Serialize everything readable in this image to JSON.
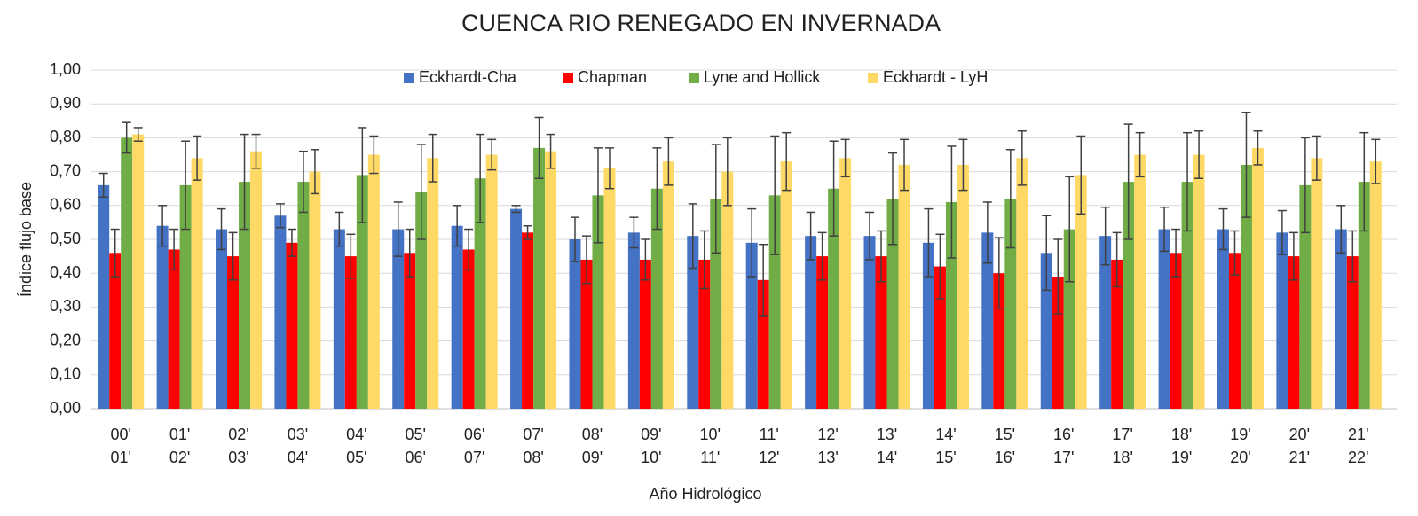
{
  "chart_data": {
    "type": "bar",
    "title": "CUENCA RIO RENEGADO EN INVERNADA",
    "x_label": "Año Hidrológico",
    "y_label": "Índice flujo base",
    "categories": [
      [
        "00'",
        "01'"
      ],
      [
        "01'",
        "02'"
      ],
      [
        "02'",
        "03'"
      ],
      [
        "03'",
        "04'"
      ],
      [
        "04'",
        "05'"
      ],
      [
        "05'",
        "06'"
      ],
      [
        "06'",
        "07'"
      ],
      [
        "07'",
        "08'"
      ],
      [
        "08'",
        "09'"
      ],
      [
        "09'",
        "10'"
      ],
      [
        "10'",
        "11'"
      ],
      [
        "11'",
        "12'"
      ],
      [
        "12'",
        "13'"
      ],
      [
        "13'",
        "14'"
      ],
      [
        "14'",
        "15'"
      ],
      [
        "15'",
        "16'"
      ],
      [
        "16'",
        "17'"
      ],
      [
        "17'",
        "18'"
      ],
      [
        "18'",
        "19'"
      ],
      [
        "19'",
        "20'"
      ],
      [
        "20'",
        "21'"
      ],
      [
        "21'",
        "22'"
      ]
    ],
    "series": [
      {
        "name": "Eckhardt-Cha",
        "color": "#4472c4",
        "values": [
          0.66,
          0.54,
          0.53,
          0.57,
          0.53,
          0.53,
          0.54,
          0.59,
          0.5,
          0.52,
          0.51,
          0.49,
          0.51,
          0.51,
          0.49,
          0.52,
          0.46,
          0.51,
          0.53,
          0.53,
          0.52,
          0.53
        ],
        "errors": [
          0.035,
          0.06,
          0.06,
          0.035,
          0.05,
          0.08,
          0.06,
          0.01,
          0.065,
          0.045,
          0.095,
          0.1,
          0.07,
          0.07,
          0.1,
          0.09,
          0.11,
          0.085,
          0.065,
          0.06,
          0.065,
          0.07
        ]
      },
      {
        "name": "Chapman",
        "color": "#ff0000",
        "values": [
          0.46,
          0.47,
          0.45,
          0.49,
          0.45,
          0.46,
          0.47,
          0.52,
          0.44,
          0.44,
          0.44,
          0.38,
          0.45,
          0.45,
          0.42,
          0.4,
          0.39,
          0.44,
          0.46,
          0.46,
          0.45,
          0.45
        ],
        "errors": [
          0.07,
          0.06,
          0.07,
          0.04,
          0.065,
          0.07,
          0.06,
          0.02,
          0.07,
          0.06,
          0.085,
          0.105,
          0.07,
          0.075,
          0.095,
          0.105,
          0.11,
          0.08,
          0.07,
          0.065,
          0.07,
          0.075
        ]
      },
      {
        "name": "Lyne and Hollick",
        "color": "#70ad47",
        "values": [
          0.8,
          0.66,
          0.67,
          0.67,
          0.69,
          0.64,
          0.68,
          0.77,
          0.63,
          0.65,
          0.62,
          0.63,
          0.65,
          0.62,
          0.61,
          0.62,
          0.53,
          0.67,
          0.67,
          0.72,
          0.66,
          0.67
        ],
        "errors": [
          0.045,
          0.13,
          0.14,
          0.09,
          0.14,
          0.14,
          0.13,
          0.09,
          0.14,
          0.12,
          0.16,
          0.175,
          0.14,
          0.135,
          0.165,
          0.145,
          0.155,
          0.17,
          0.145,
          0.155,
          0.14,
          0.145
        ]
      },
      {
        "name": "Eckhardt - LyH",
        "color": "#ffd966",
        "values": [
          0.81,
          0.74,
          0.76,
          0.7,
          0.75,
          0.74,
          0.75,
          0.76,
          0.71,
          0.73,
          0.7,
          0.73,
          0.74,
          0.72,
          0.72,
          0.74,
          0.69,
          0.75,
          0.75,
          0.77,
          0.74,
          0.73
        ],
        "errors": [
          0.02,
          0.065,
          0.05,
          0.065,
          0.055,
          0.07,
          0.045,
          0.05,
          0.06,
          0.07,
          0.1,
          0.085,
          0.055,
          0.075,
          0.075,
          0.08,
          0.115,
          0.065,
          0.07,
          0.05,
          0.065,
          0.065
        ]
      }
    ],
    "ylim": [
      0,
      1
    ],
    "yticks": [
      {
        "value": 0,
        "label": "0,00"
      },
      {
        "value": 0.1,
        "label": "0,10"
      },
      {
        "value": 0.2,
        "label": "0,20"
      },
      {
        "value": 0.3,
        "label": "0,30"
      },
      {
        "value": 0.4,
        "label": "0,40"
      },
      {
        "value": 0.5,
        "label": "0,50"
      },
      {
        "value": 0.6,
        "label": "0,60"
      },
      {
        "value": 0.7,
        "label": "0,70"
      },
      {
        "value": 0.8,
        "label": "0,80"
      },
      {
        "value": 0.9,
        "label": "0,90"
      },
      {
        "value": 1,
        "label": "1,00"
      }
    ],
    "grid": true,
    "legend": "top"
  }
}
